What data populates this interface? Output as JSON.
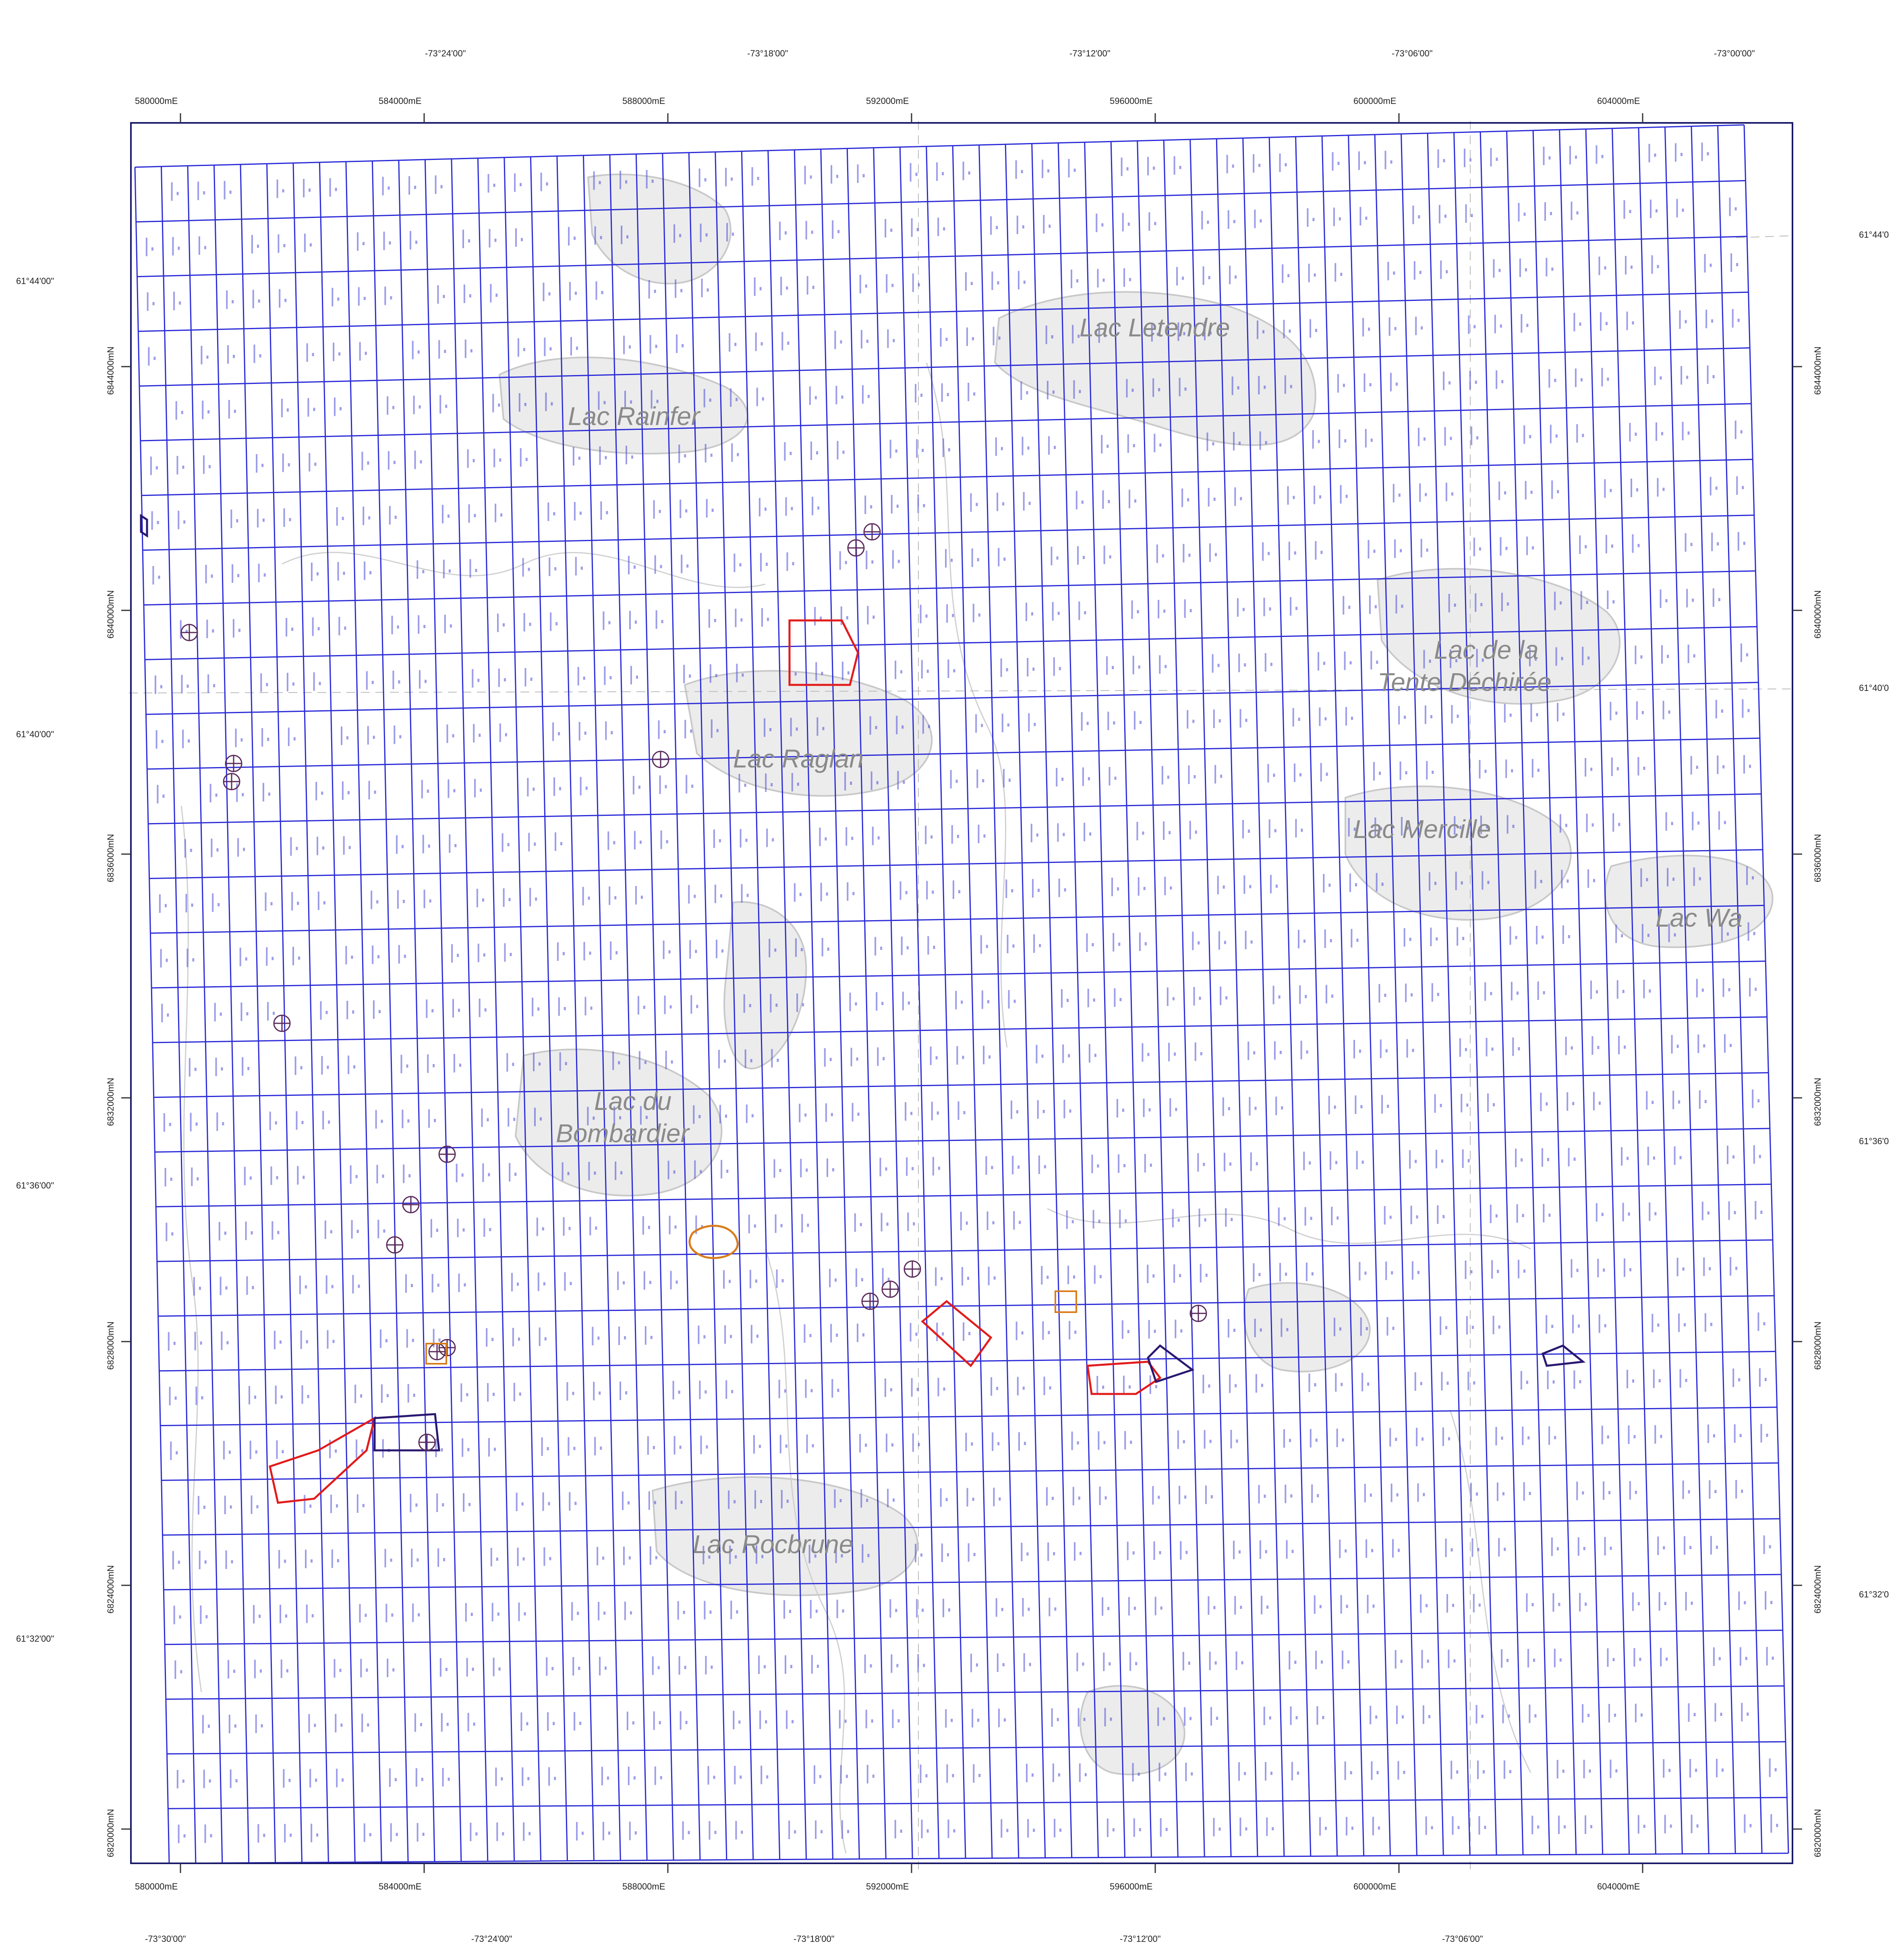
{
  "map": {
    "lakes": [
      {
        "id": "letendre",
        "name": "Lac Letendre"
      },
      {
        "id": "rainfer",
        "name": "Lac Rainfer"
      },
      {
        "id": "raglan",
        "name": "Lac Raglan"
      },
      {
        "id": "tente1",
        "name": "Lac de la"
      },
      {
        "id": "tente2",
        "name": "Tente Déchirée"
      },
      {
        "id": "mercille",
        "name": "Lac Mercille"
      },
      {
        "id": "wa",
        "name": "Lac Wa"
      },
      {
        "id": "bombardier1",
        "name": "Lac du"
      },
      {
        "id": "bombardier2",
        "name": "Bombardier"
      },
      {
        "id": "rocbrune",
        "name": "Lac Rocbrune"
      }
    ],
    "axes": {
      "top_longitudes": [
        "-73°24'00\"",
        "-73°18'00\"",
        "-73°12'00\"",
        "-73°06'00\"",
        "-73°00'00\""
      ],
      "bottom_longitudes": [
        "-73°30'00\"",
        "-73°24'00\"",
        "-73°18'00\"",
        "-73°12'00\"",
        "-73°06'00\""
      ],
      "eastings": [
        "580000mE",
        "584000mE",
        "588000mE",
        "592000mE",
        "596000mE",
        "600000mE",
        "604000mE"
      ],
      "northings": [
        "6844000mN",
        "6840000mN",
        "6836000mN",
        "6832000mN",
        "6828000mN",
        "6824000mN",
        "6820000mN"
      ],
      "left_latitudes": [
        "61°44'00\"",
        "61°40'00\"",
        "61°36'00\"",
        "61°32'00\""
      ],
      "right_latitudes": [
        "61°44'0",
        "61°40'0",
        "61°36'0",
        "61°32'0"
      ]
    },
    "colors": {
      "grid": "#2a2ad8",
      "frame": "#1a1a6a",
      "lake_fill": "#ececec",
      "lake_outline": "#c8c8c8",
      "claim_red": "#e21b1b",
      "claim_navy": "#2a1870",
      "marker_orange": "#d87c1a",
      "text": "#222222"
    }
  }
}
